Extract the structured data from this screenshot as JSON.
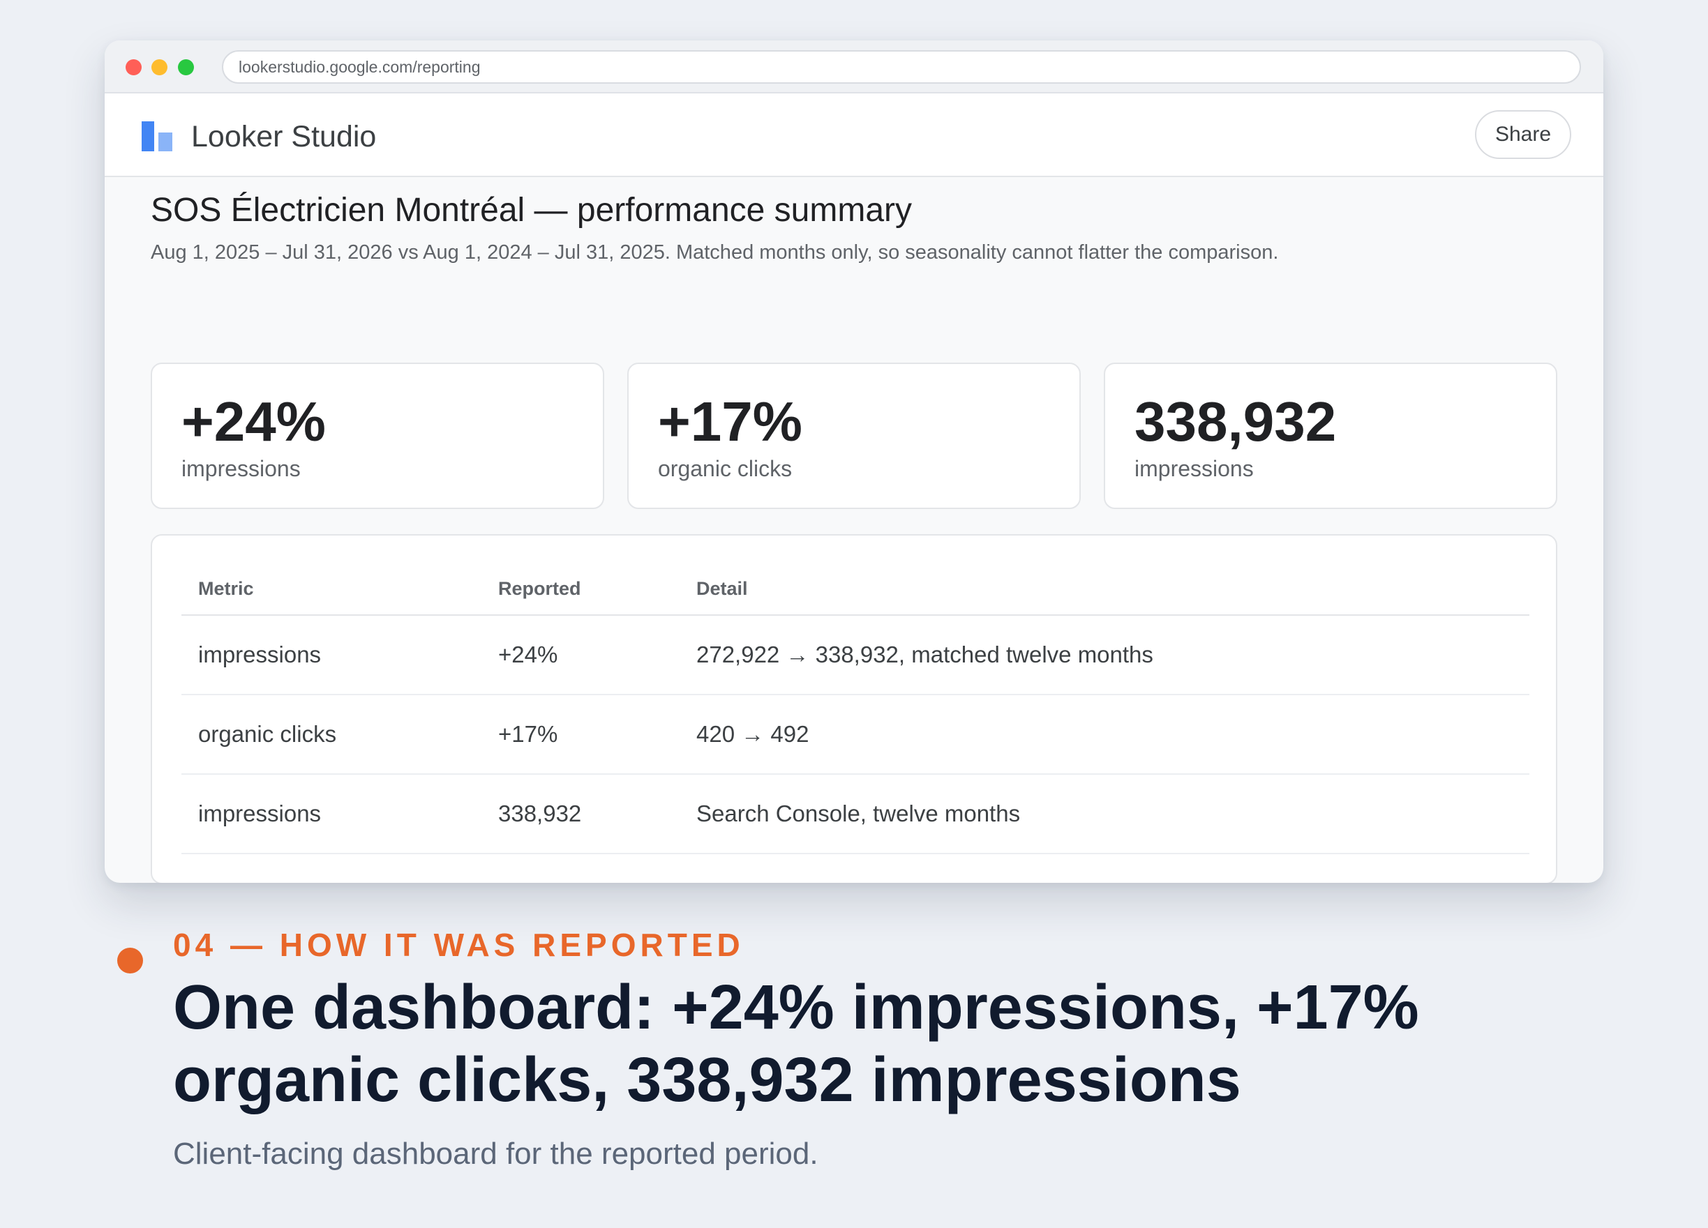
{
  "browser": {
    "url": "lookerstudio.google.com/reporting"
  },
  "app": {
    "name": "Looker Studio",
    "share_label": "Share"
  },
  "report": {
    "title": "SOS Électricien Montréal — performance summary",
    "subtitle": "Aug 1, 2025 – Jul 31, 2026 vs Aug 1, 2024 – Jul 31, 2025. Matched months only, so seasonality cannot flatter the comparison."
  },
  "kpis": [
    {
      "value": "+24%",
      "label": "impressions"
    },
    {
      "value": "+17%",
      "label": "organic clicks"
    },
    {
      "value": "338,932",
      "label": "impressions"
    }
  ],
  "table": {
    "headers": [
      "Metric",
      "Reported",
      "Detail"
    ],
    "rows": [
      {
        "metric": "impressions",
        "reported": "+24%",
        "detail": "272,922 → 338,932, matched twelve months"
      },
      {
        "metric": "organic clicks",
        "reported": "+17%",
        "detail": "420 → 492"
      },
      {
        "metric": "impressions",
        "reported": "338,932",
        "detail": "Search Console, twelve months"
      }
    ]
  },
  "section": {
    "eyebrow": "04 — HOW IT WAS REPORTED",
    "headline": "One dashboard: +24% impressions, +17% organic clicks, 338,932 impressions",
    "caption": "Client-facing dashboard for the reported period."
  },
  "colors": {
    "accent": "#e8672a",
    "logo_primary": "#4285f4",
    "logo_secondary": "#8ab4f8",
    "headline": "#111b2e",
    "background": "#edf0f5"
  },
  "icons": {
    "window_controls": [
      "close-dot",
      "minimize-dot",
      "maximize-dot"
    ],
    "logo": "looker-studio-logo-icon",
    "bullet": "orange-dot-icon"
  }
}
